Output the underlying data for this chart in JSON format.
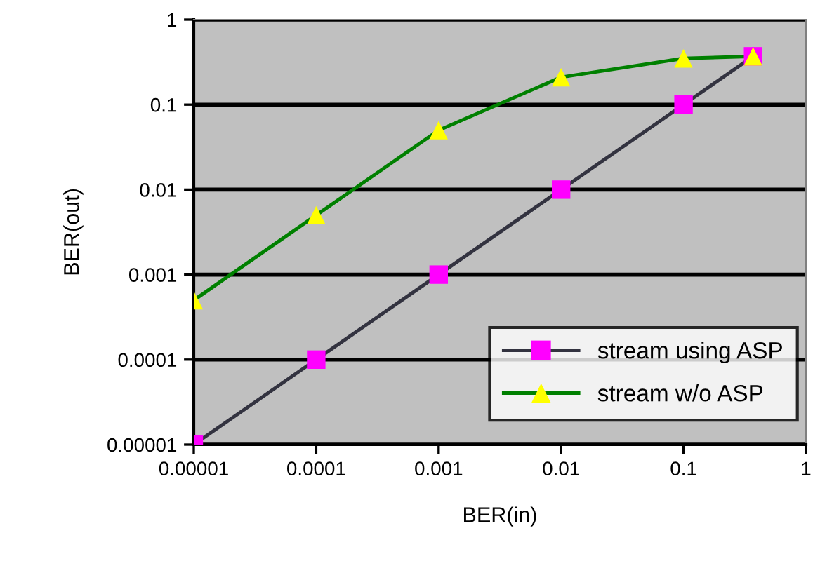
{
  "chart_data": {
    "type": "line",
    "xlabel": "BER(in)",
    "ylabel": "BER(out)",
    "log": "xy",
    "xlim": [
      1e-05,
      1
    ],
    "ylim": [
      1e-05,
      1
    ],
    "xticks": [
      {
        "value": 1e-05,
        "label": "0.00001"
      },
      {
        "value": 0.0001,
        "label": "0.0001"
      },
      {
        "value": 0.001,
        "label": "0.001"
      },
      {
        "value": 0.01,
        "label": "0.01"
      },
      {
        "value": 0.1,
        "label": "0.1"
      },
      {
        "value": 1,
        "label": "1"
      }
    ],
    "yticks": [
      {
        "value": 1e-05,
        "label": "0.00001"
      },
      {
        "value": 0.0001,
        "label": "0.0001"
      },
      {
        "value": 0.001,
        "label": "0.001"
      },
      {
        "value": 0.01,
        "label": "0.01"
      },
      {
        "value": 0.1,
        "label": "0.1"
      },
      {
        "value": 1,
        "label": "1"
      }
    ],
    "grid": "y",
    "legend": "bottom right",
    "series": [
      {
        "name": "stream using ASP",
        "color": "#333340",
        "marker": "square",
        "colors": [
          "#ff00ff",
          "#ff00ff",
          "#ff00ff",
          "#ff00ff",
          "#ff00ff",
          "#ff00ff"
        ],
        "x": [
          1e-05,
          0.0001,
          0.001,
          0.01,
          0.1,
          0.37
        ],
        "values": [
          1e-05,
          0.0001,
          0.001,
          0.01,
          0.1,
          0.37
        ]
      },
      {
        "name": "stream w/o ASP",
        "color": "#008000",
        "marker": "triangle",
        "colors": [
          "#ffff00",
          "#ffff00",
          "#ffff00",
          "#ffff00",
          "#ffff00",
          "#ffff00"
        ],
        "x": [
          1e-05,
          0.0001,
          0.001,
          0.01,
          0.1,
          0.37
        ],
        "values": [
          0.0005,
          0.005,
          0.05,
          0.21,
          0.35,
          0.37
        ]
      }
    ]
  }
}
